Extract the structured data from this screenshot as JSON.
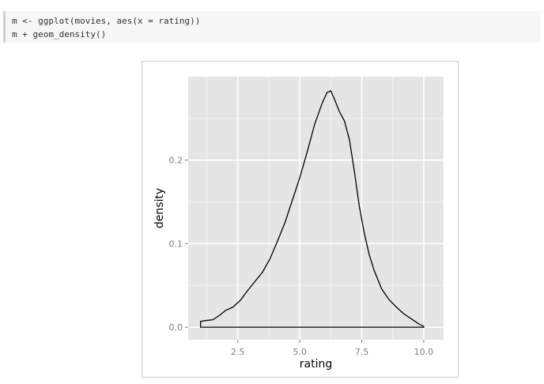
{
  "code": {
    "line1": "m <- ggplot(movies, aes(x = rating))",
    "line2": "m + geom_density()"
  },
  "chart_data": {
    "type": "area",
    "xlabel": "rating",
    "ylabel": "density",
    "xlim": [
      0.5,
      10.8
    ],
    "ylim": [
      -0.015,
      0.3
    ],
    "x_ticks": [
      2.5,
      5.0,
      7.5,
      10.0
    ],
    "x_tick_labels": [
      "2.5",
      "5.0",
      "7.5",
      "10.0"
    ],
    "y_ticks": [
      0.0,
      0.1,
      0.2
    ],
    "y_tick_labels": [
      "0.0",
      "0.1",
      "0.2"
    ],
    "grid": true,
    "colors": {
      "panel": "#e5e5e5",
      "grid_major": "#ffffff",
      "grid_minor": "#f2f2f2",
      "line": "#000000",
      "tick_text": "#7f7f7f",
      "axis_title": "#000000"
    },
    "series": [
      {
        "x": [
          1.0,
          1.2,
          1.5,
          1.8,
          2.0,
          2.3,
          2.6,
          2.9,
          3.2,
          3.5,
          3.8,
          4.1,
          4.4,
          4.7,
          5.0,
          5.3,
          5.6,
          5.9,
          6.1,
          6.25,
          6.4,
          6.6,
          6.8,
          7.0,
          7.2,
          7.4,
          7.6,
          7.8,
          8.0,
          8.3,
          8.6,
          8.9,
          9.2,
          9.5,
          9.8,
          10.0
        ],
        "y": [
          0.007,
          0.008,
          0.009,
          0.015,
          0.02,
          0.024,
          0.032,
          0.044,
          0.055,
          0.066,
          0.082,
          0.103,
          0.125,
          0.152,
          0.179,
          0.21,
          0.243,
          0.268,
          0.281,
          0.283,
          0.273,
          0.258,
          0.247,
          0.225,
          0.187,
          0.145,
          0.113,
          0.087,
          0.068,
          0.046,
          0.033,
          0.024,
          0.016,
          0.01,
          0.004,
          0.001
        ]
      }
    ]
  }
}
